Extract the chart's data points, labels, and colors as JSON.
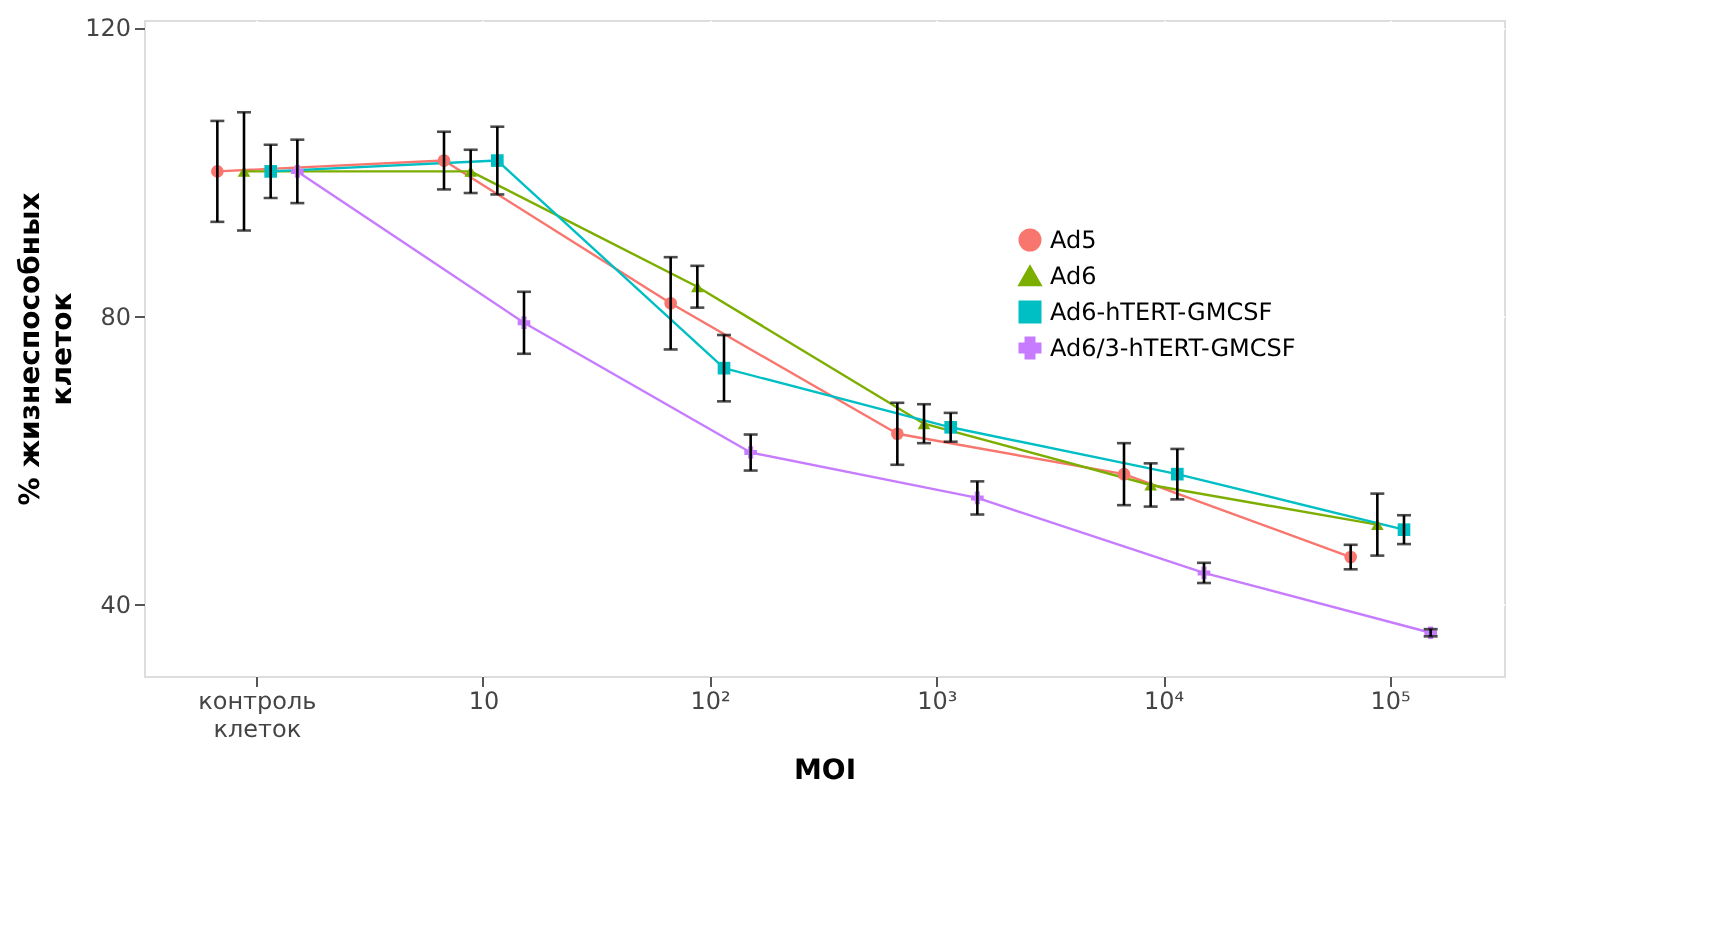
{
  "chart_data": {
    "type": "line",
    "xlabel": "MOI",
    "ylabel": "% жизнеспособных клеток",
    "categories": [
      "контроль клеток",
      "10",
      "10²",
      "10³",
      "10⁴",
      "10⁵"
    ],
    "ylim": [
      30,
      121
    ],
    "yticks": [
      40,
      80,
      120
    ],
    "grid": true,
    "legend": "top right",
    "series": [
      {
        "name": "Ad5",
        "color": "#f8766d",
        "marker": "circle",
        "values": [
          100,
          101.5,
          81.7,
          63.6,
          58,
          46.5
        ],
        "errors": [
          7,
          4,
          6.4,
          4.3,
          4.3,
          1.7
        ]
      },
      {
        "name": "Ad6",
        "color": "#7cae00",
        "marker": "triangle",
        "values": [
          100,
          100,
          84,
          65,
          56.5,
          51
        ],
        "errors": [
          8.2,
          3,
          2.9,
          2.7,
          3,
          4.3
        ]
      },
      {
        "name": "Ad6-hTERT-GMCSF",
        "color": "#00bfc4",
        "marker": "square",
        "values": [
          100,
          101.5,
          72.7,
          64.5,
          58,
          50.3
        ],
        "errors": [
          3.7,
          4.7,
          4.6,
          2,
          3.5,
          2
        ]
      },
      {
        "name": "Ad6/3-hTERT-GMCSF",
        "color": "#c77cff",
        "marker": "cross",
        "values": [
          100,
          79,
          61,
          54.7,
          44.3,
          36
        ],
        "errors": [
          4.4,
          4.3,
          2.5,
          2.3,
          1.4,
          0.5
        ]
      }
    ]
  }
}
